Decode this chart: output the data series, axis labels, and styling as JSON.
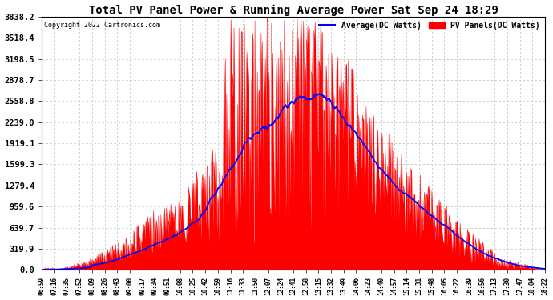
{
  "title": "Total PV Panel Power & Running Average Power Sat Sep 24 18:29",
  "copyright": "Copyright 2022 Cartronics.com",
  "legend_avg": "Average(DC Watts)",
  "legend_pv": "PV Panels(DC Watts)",
  "bg_color": "#ffffff",
  "plot_bg_color": "#ffffff",
  "grid_color": "#c8c8c8",
  "pv_color": "#ff0000",
  "avg_color": "#0000ff",
  "yticks": [
    0.0,
    319.9,
    639.7,
    959.6,
    1279.4,
    1599.3,
    1919.1,
    2239.0,
    2558.8,
    2878.7,
    3198.5,
    3518.4,
    3838.2
  ],
  "xtick_labels": [
    "06:59",
    "07:16",
    "07:35",
    "07:52",
    "08:09",
    "08:26",
    "08:43",
    "09:00",
    "09:17",
    "09:34",
    "09:51",
    "10:08",
    "10:25",
    "10:42",
    "10:59",
    "11:16",
    "11:33",
    "11:50",
    "12:07",
    "12:24",
    "12:41",
    "12:58",
    "13:15",
    "13:32",
    "13:49",
    "14:06",
    "14:23",
    "14:40",
    "14:57",
    "15:14",
    "15:31",
    "15:48",
    "16:05",
    "16:22",
    "16:39",
    "16:56",
    "17:13",
    "17:30",
    "17:47",
    "18:04",
    "18:22"
  ],
  "ymax": 3838.2,
  "ymin": 0.0
}
